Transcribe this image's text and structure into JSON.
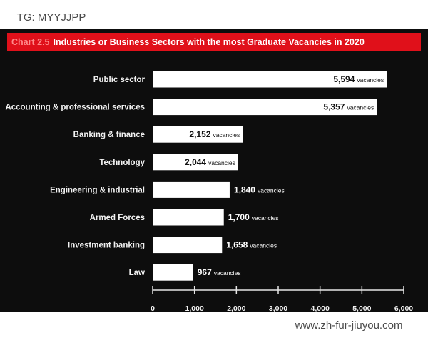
{
  "watermark_top": "TG: MYYJJPP",
  "watermark_bottom": "www.zh-fur-jiuyou.com",
  "colors": {
    "panel_background": "#0d0d0d",
    "title_bar": "#e0101a",
    "bars": "#ffffff"
  },
  "chart_data": {
    "type": "bar",
    "orientation": "horizontal",
    "chart_number": "Chart 2.5",
    "title": "Industries or Business Sectors with the most Graduate Vacancies in 2020",
    "categories": [
      "Public sector",
      "Accounting & professional services",
      "Banking & finance",
      "Technology",
      "Engineering & industrial",
      "Armed Forces",
      "Investment banking",
      "Law"
    ],
    "values": [
      5594,
      5357,
      2152,
      2044,
      1840,
      1700,
      1658,
      967
    ],
    "value_labels": [
      "5,594",
      "5,357",
      "2,152",
      "2,044",
      "1,840",
      "1,700",
      "1,658",
      "967"
    ],
    "unit_label": "vacancies",
    "xlim": [
      0,
      6000
    ],
    "xticks": [
      0,
      1000,
      2000,
      3000,
      4000,
      5000,
      6000
    ],
    "xtick_labels": [
      "0",
      "1,000",
      "2,000",
      "3,000",
      "4,000",
      "5,000",
      "6,000"
    ],
    "grid": false,
    "legend": "none"
  }
}
